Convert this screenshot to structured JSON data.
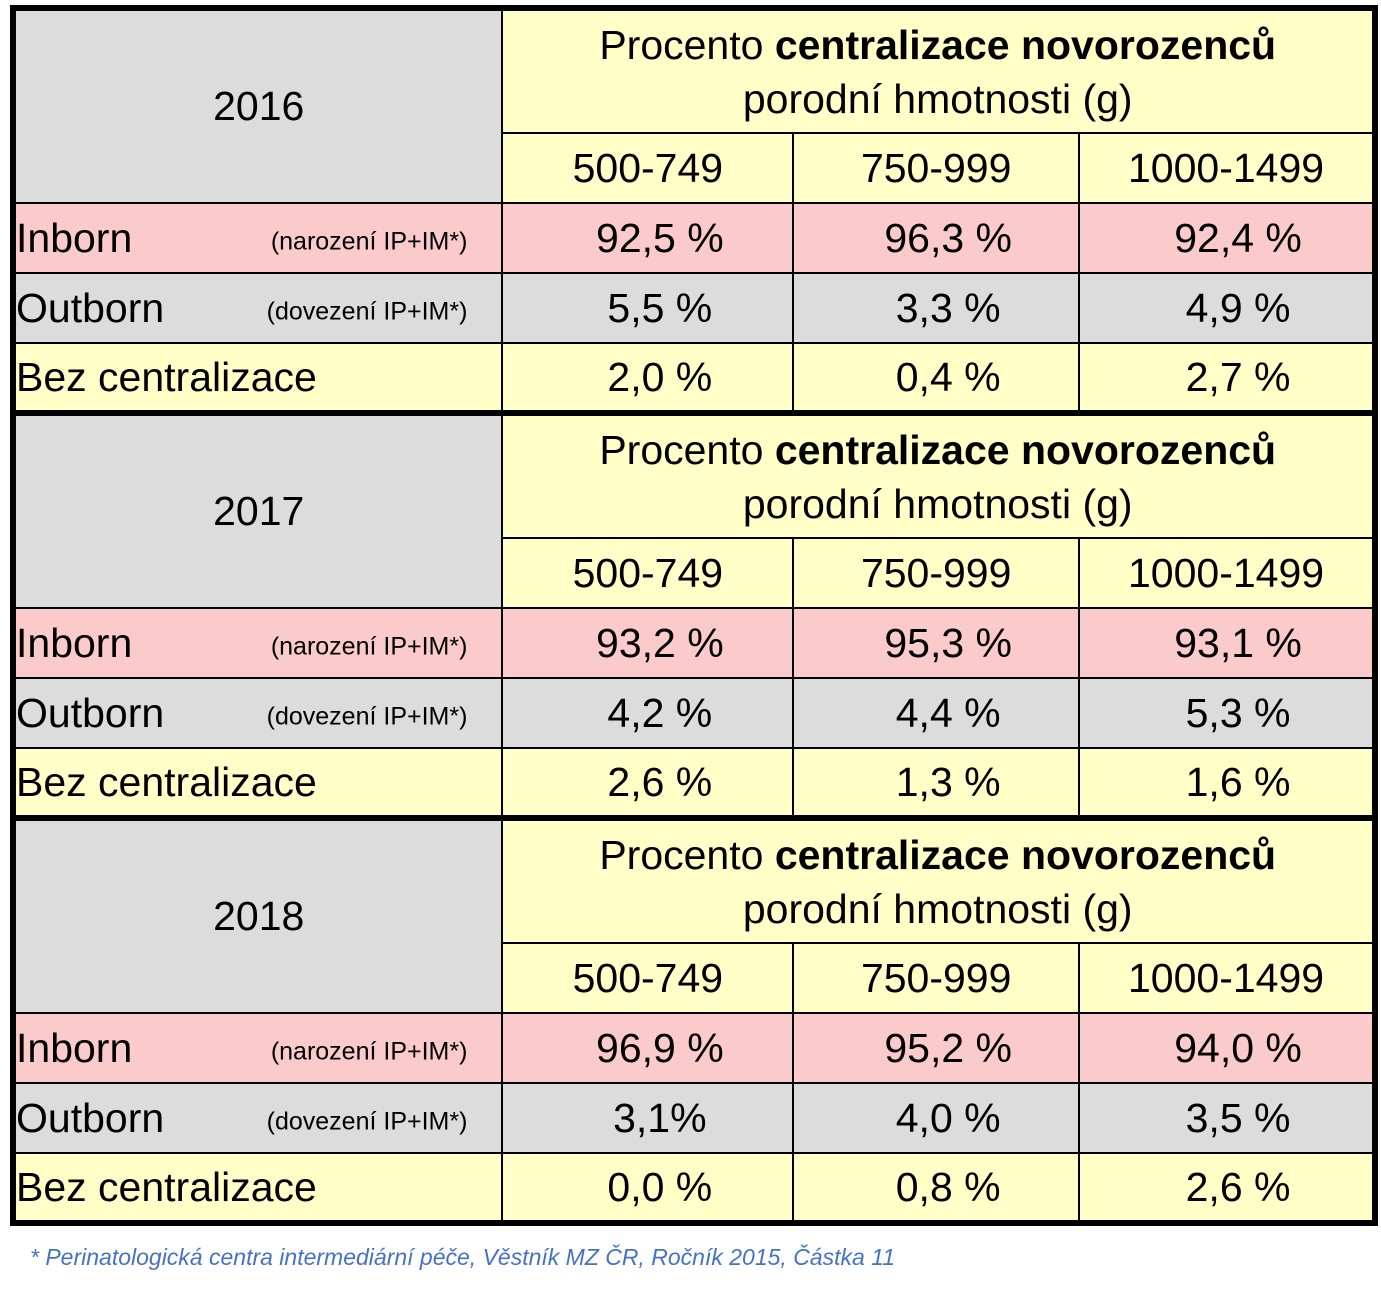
{
  "title": {
    "prefix": "Procento ",
    "bold": "centralizace novorozenců",
    "line2": "porodní hmotnosti (g)"
  },
  "weight_groups": [
    "500-749",
    "750-999",
    "1000-1499"
  ],
  "row_labels": {
    "inborn": {
      "main": "Inborn",
      "note": "(narození IP+IM*)"
    },
    "outborn": {
      "main": "Outborn",
      "note": "(dovezení IP+IM*)"
    },
    "none": {
      "main": "Bez centralizace",
      "note": ""
    }
  },
  "years": [
    {
      "year": "2016",
      "inborn": [
        "92,5 %",
        "96,3 %",
        "92,4 %"
      ],
      "outborn": [
        "5,5 %",
        "3,3 %",
        "4,9 %"
      ],
      "none": [
        "2,0 %",
        "0,4 %",
        "2,7 %"
      ]
    },
    {
      "year": "2017",
      "inborn": [
        "93,2 %",
        "95,3 %",
        "93,1 %"
      ],
      "outborn": [
        "4,2 %",
        "4,4 %",
        "5,3 %"
      ],
      "none": [
        "2,6 %",
        "1,3 %",
        "1,6 %"
      ]
    },
    {
      "year": "2018",
      "inborn": [
        "96,9 %",
        "95,2 %",
        "94,0 %"
      ],
      "outborn": [
        "3,1%",
        "4,0 %",
        "3,5 %"
      ],
      "none": [
        "0,0 %",
        "0,8 %",
        "2,6 %"
      ]
    }
  ],
  "colors": {
    "header_yellow": "#ffffc7",
    "inborn_pink": "#fbcbcb",
    "outborn_gray": "#dcdcdc",
    "footnote_blue": "#4472c4"
  },
  "footnote": "* Perinatologická centra intermediární péče, Věstník MZ ČR, Ročník 2015, Částka 11"
}
